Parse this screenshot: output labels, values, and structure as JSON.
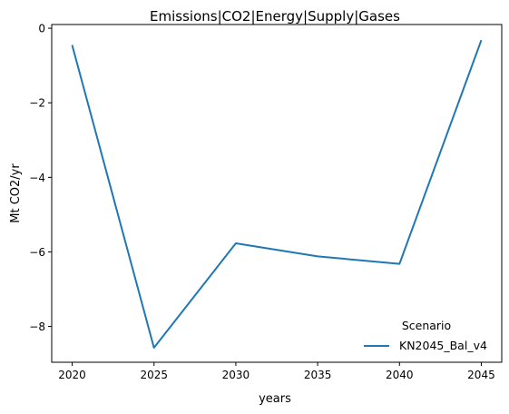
{
  "chart_data": {
    "type": "line",
    "title": "Emissions|CO2|Energy|Supply|Gases",
    "xlabel": "years",
    "ylabel": "Mt CO2/yr",
    "x": [
      2020,
      2025,
      2030,
      2035,
      2040,
      2045
    ],
    "xticks": [
      "2020",
      "2025",
      "2030",
      "2035",
      "2040",
      "2045"
    ],
    "yticks": [
      "0",
      "−2",
      "−4",
      "−6",
      "−8"
    ],
    "ytick_values": [
      0,
      -2,
      -4,
      -6,
      -8
    ],
    "xlim": [
      2018.75,
      2046.25
    ],
    "ylim": [
      -8.96,
      0.1
    ],
    "grid": false,
    "legend": {
      "title": "Scenario",
      "placement": "lower-right"
    },
    "series": [
      {
        "name": "KN2045_Bal_v4",
        "color": "#1f77b4",
        "values": [
          -0.45,
          -8.57,
          -5.77,
          -6.12,
          -6.32,
          -0.32
        ]
      }
    ]
  }
}
